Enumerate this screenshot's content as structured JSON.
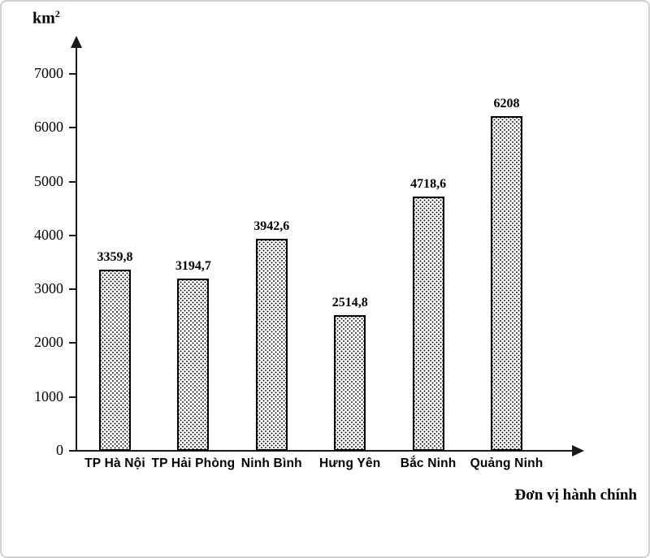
{
  "frame": {
    "background_color": "#ffffff",
    "border_color": "#cfcfcf"
  },
  "labels": {
    "y_unit_base": "km",
    "y_unit_sup": "2",
    "x_axis_title": "Đơn vị hành chính"
  },
  "chart_data": {
    "type": "bar",
    "title": "",
    "ylabel": "km²",
    "xlabel": "Đơn vị hành chính",
    "categories": [
      "TP Hà Nội",
      "TP Hải Phòng",
      "Ninh Bình",
      "Hưng Yên",
      "Bắc Ninh",
      "Quảng Ninh"
    ],
    "values": [
      3359.8,
      3194.7,
      3942.6,
      2514.8,
      4718.6,
      6208
    ],
    "value_labels": [
      "3359,8",
      "3194,7",
      "3942,6",
      "2514,8",
      "4718,6",
      "6208"
    ],
    "yticks": [
      0,
      1000,
      2000,
      3000,
      4000,
      5000,
      6000,
      7000
    ],
    "ylim": [
      0,
      7500
    ],
    "grid": false,
    "legend_position": "none",
    "bar_fill_style": "black-dot-stipple-on-white",
    "bar_border_color": "#000000",
    "axis_color": "#1a1a1a"
  }
}
